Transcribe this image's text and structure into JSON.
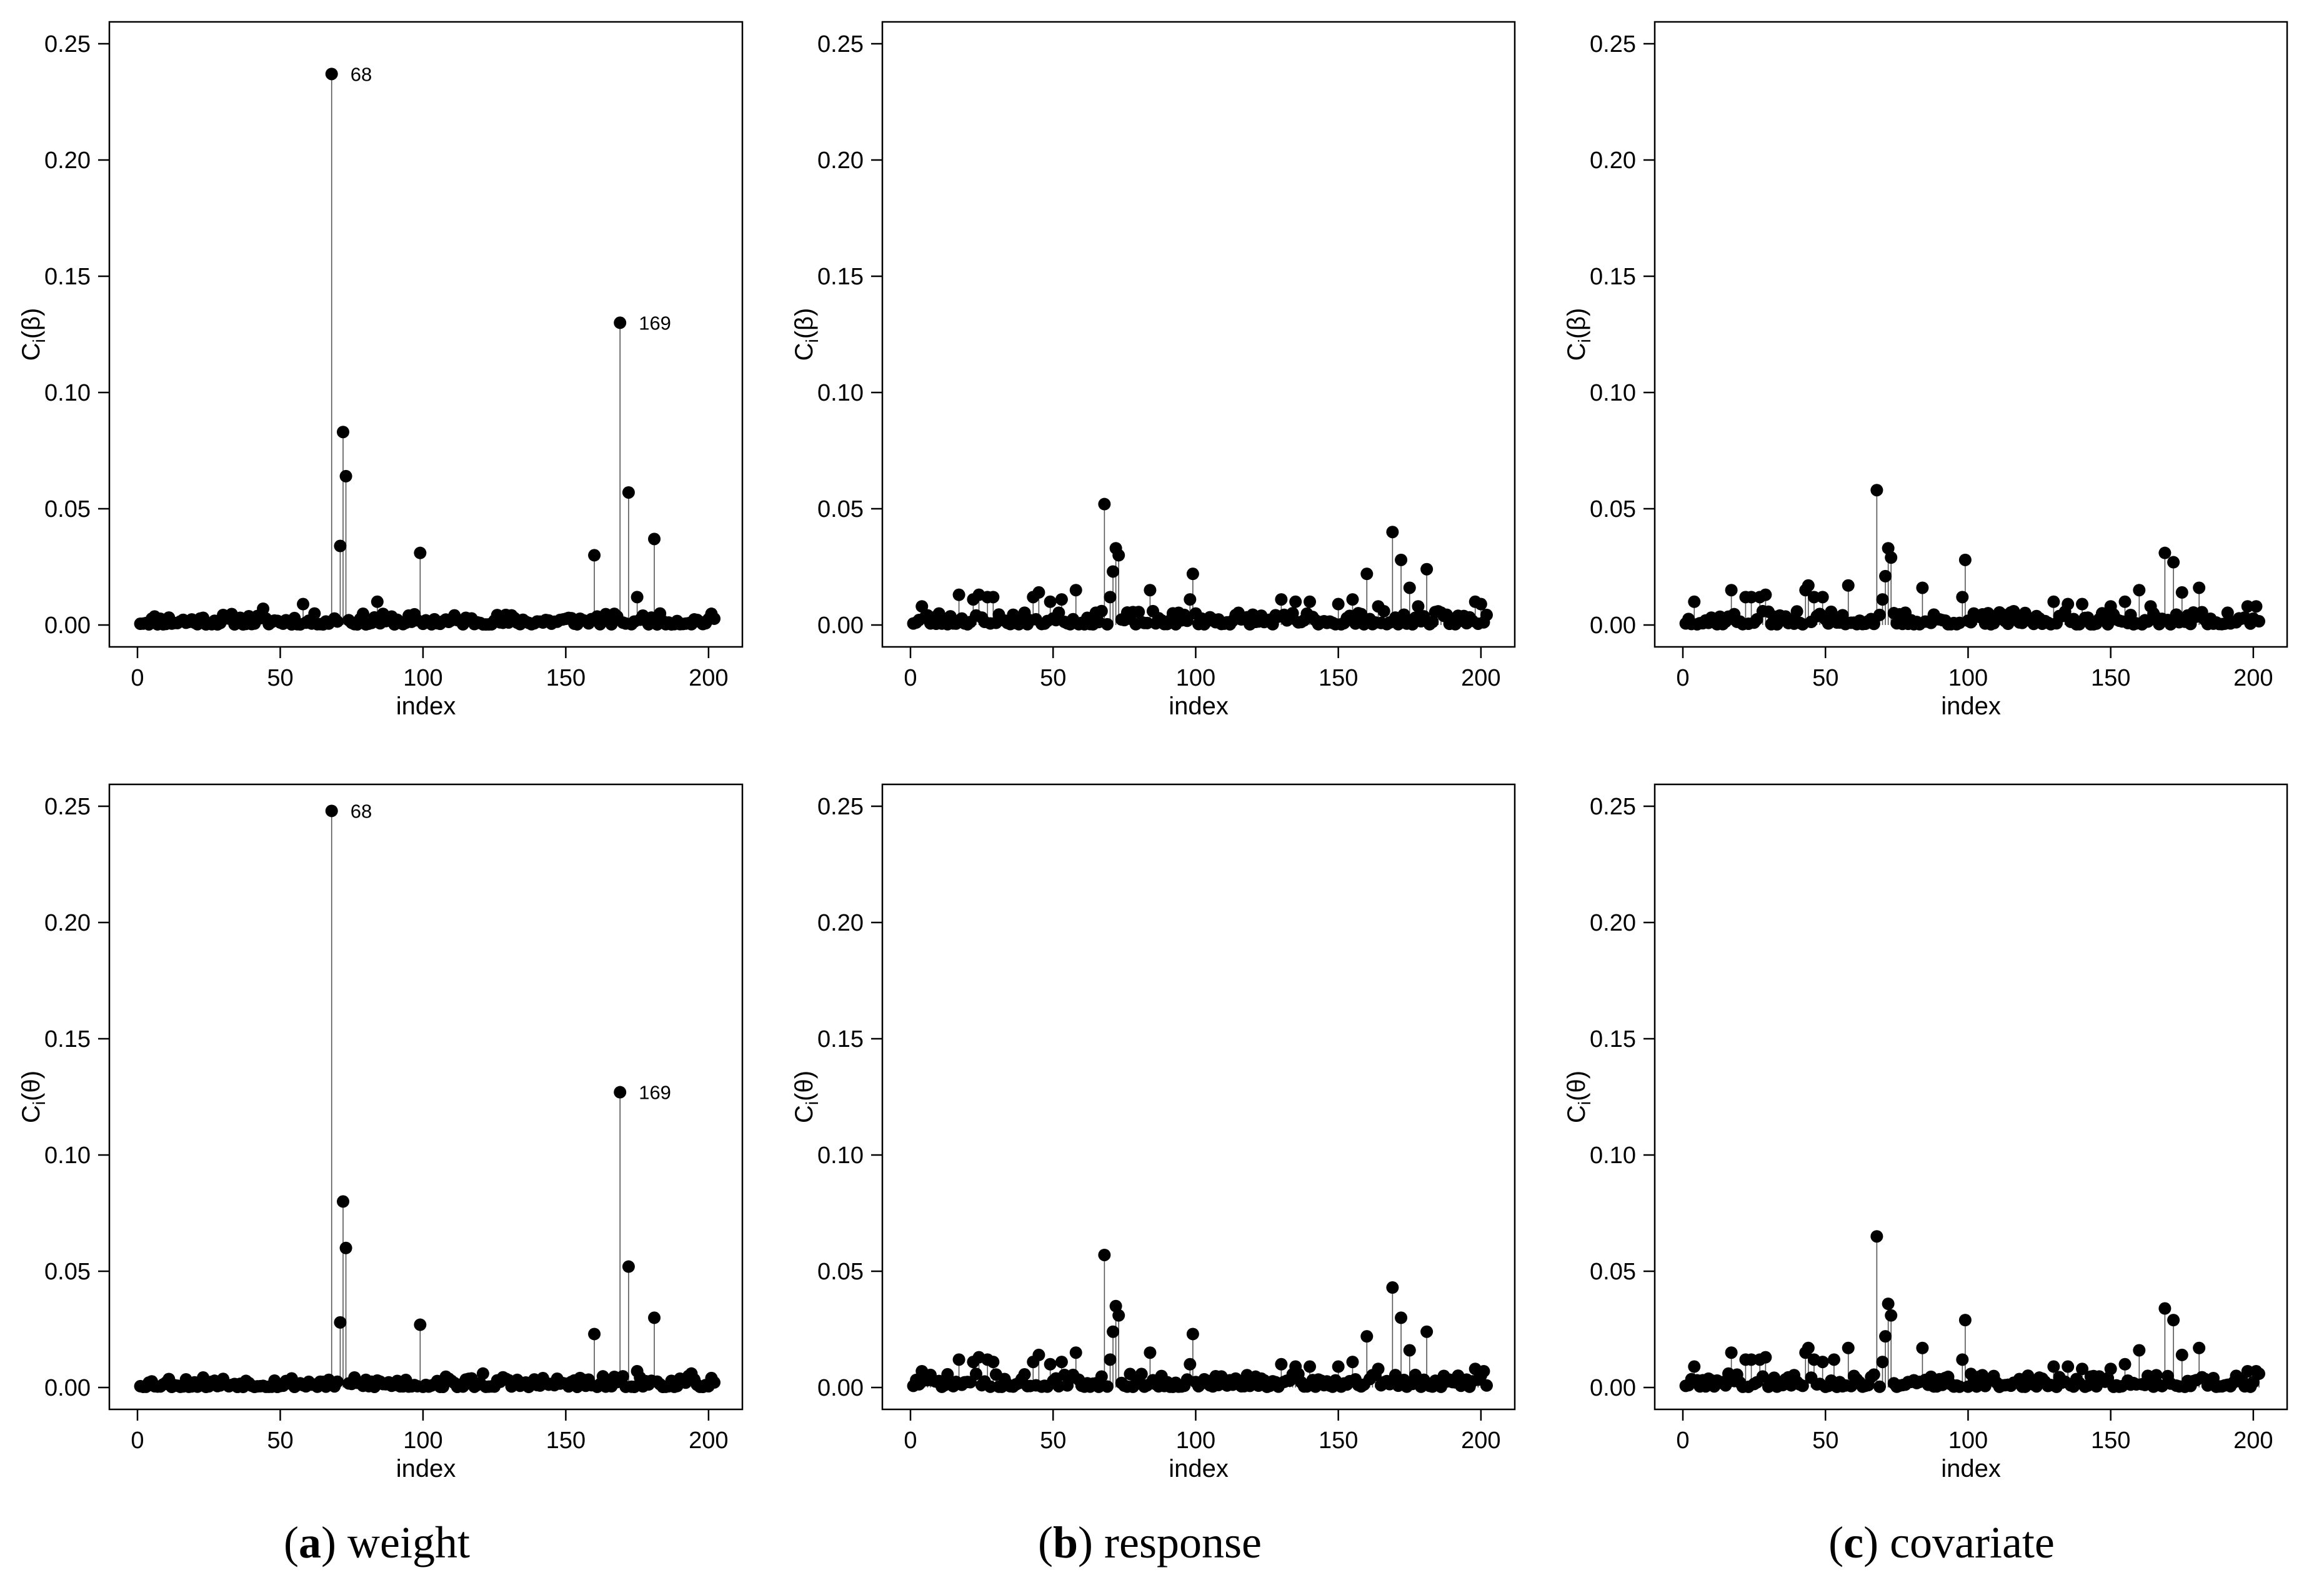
{
  "figure": {
    "captions": [
      {
        "open": "(",
        "letter": "a",
        "close": ")",
        "text": "weight"
      },
      {
        "open": "(",
        "letter": "b",
        "close": ")",
        "text": "response"
      },
      {
        "open": "(",
        "letter": "c",
        "close": ")",
        "text": "covariate"
      }
    ]
  },
  "chart_data": [
    {
      "type": "scatter",
      "style": "index-plot-with-spikes",
      "panel": "(a) weight, top",
      "xlabel": "index",
      "ylabel_base": "C",
      "ylabel_sub": "i",
      "ylabel_param": "(β)",
      "xlim": [
        0,
        202
      ],
      "ylim": [
        0,
        0.25
      ],
      "xticks": [
        0,
        50,
        100,
        150,
        200
      ],
      "yticks": [
        0.0,
        0.05,
        0.1,
        0.15,
        0.2,
        0.25
      ],
      "ytick_labels": [
        "0.00",
        "0.05",
        "0.10",
        "0.15",
        "0.20",
        "0.25"
      ],
      "baseline_max": 0.005,
      "seed": 11,
      "points": [
        {
          "x": 44,
          "y": 0.007
        },
        {
          "x": 58,
          "y": 0.009
        },
        {
          "x": 68,
          "y": 0.237
        },
        {
          "x": 71,
          "y": 0.034
        },
        {
          "x": 72,
          "y": 0.083
        },
        {
          "x": 73,
          "y": 0.064
        },
        {
          "x": 84,
          "y": 0.01
        },
        {
          "x": 99,
          "y": 0.031
        },
        {
          "x": 160,
          "y": 0.03
        },
        {
          "x": 169,
          "y": 0.13
        },
        {
          "x": 172,
          "y": 0.057
        },
        {
          "x": 175,
          "y": 0.012
        },
        {
          "x": 181,
          "y": 0.037
        }
      ],
      "labeled_points": [
        {
          "x": 68,
          "y": 0.237,
          "label": "68"
        },
        {
          "x": 169,
          "y": 0.13,
          "label": "169"
        }
      ]
    },
    {
      "type": "scatter",
      "style": "index-plot-with-spikes",
      "panel": "(b) response, top",
      "xlabel": "index",
      "ylabel_base": "C",
      "ylabel_sub": "i",
      "ylabel_param": "(β)",
      "xlim": [
        0,
        202
      ],
      "ylim": [
        0,
        0.25
      ],
      "xticks": [
        0,
        50,
        100,
        150,
        200
      ],
      "yticks": [
        0.0,
        0.05,
        0.1,
        0.15,
        0.2,
        0.25
      ],
      "ytick_labels": [
        "0.00",
        "0.05",
        "0.10",
        "0.15",
        "0.20",
        "0.25"
      ],
      "baseline_max": 0.006,
      "seed": 23,
      "points": [
        {
          "x": 4,
          "y": 0.008
        },
        {
          "x": 17,
          "y": 0.013
        },
        {
          "x": 22,
          "y": 0.011
        },
        {
          "x": 24,
          "y": 0.013
        },
        {
          "x": 27,
          "y": 0.012
        },
        {
          "x": 29,
          "y": 0.012
        },
        {
          "x": 43,
          "y": 0.012
        },
        {
          "x": 45,
          "y": 0.014
        },
        {
          "x": 49,
          "y": 0.01
        },
        {
          "x": 53,
          "y": 0.011
        },
        {
          "x": 58,
          "y": 0.015
        },
        {
          "x": 68,
          "y": 0.052
        },
        {
          "x": 70,
          "y": 0.012
        },
        {
          "x": 71,
          "y": 0.023
        },
        {
          "x": 72,
          "y": 0.033
        },
        {
          "x": 73,
          "y": 0.03
        },
        {
          "x": 84,
          "y": 0.015
        },
        {
          "x": 98,
          "y": 0.011
        },
        {
          "x": 99,
          "y": 0.022
        },
        {
          "x": 130,
          "y": 0.011
        },
        {
          "x": 135,
          "y": 0.01
        },
        {
          "x": 140,
          "y": 0.01
        },
        {
          "x": 150,
          "y": 0.009
        },
        {
          "x": 155,
          "y": 0.011
        },
        {
          "x": 160,
          "y": 0.022
        },
        {
          "x": 164,
          "y": 0.008
        },
        {
          "x": 169,
          "y": 0.04
        },
        {
          "x": 172,
          "y": 0.028
        },
        {
          "x": 175,
          "y": 0.016
        },
        {
          "x": 178,
          "y": 0.008
        },
        {
          "x": 181,
          "y": 0.024
        },
        {
          "x": 198,
          "y": 0.01
        },
        {
          "x": 200,
          "y": 0.009
        }
      ],
      "labeled_points": []
    },
    {
      "type": "scatter",
      "style": "index-plot-with-spikes",
      "panel": "(c) covariate, top",
      "xlabel": "index",
      "ylabel_base": "C",
      "ylabel_sub": "i",
      "ylabel_param": "(β)",
      "xlim": [
        0,
        202
      ],
      "ylim": [
        0,
        0.25
      ],
      "xticks": [
        0,
        50,
        100,
        150,
        200
      ],
      "yticks": [
        0.0,
        0.05,
        0.1,
        0.15,
        0.2,
        0.25
      ],
      "ytick_labels": [
        "0.00",
        "0.05",
        "0.10",
        "0.15",
        "0.20",
        "0.25"
      ],
      "baseline_max": 0.006,
      "seed": 37,
      "points": [
        {
          "x": 4,
          "y": 0.01
        },
        {
          "x": 17,
          "y": 0.015
        },
        {
          "x": 22,
          "y": 0.012
        },
        {
          "x": 24,
          "y": 0.012
        },
        {
          "x": 27,
          "y": 0.012
        },
        {
          "x": 29,
          "y": 0.013
        },
        {
          "x": 43,
          "y": 0.015
        },
        {
          "x": 44,
          "y": 0.017
        },
        {
          "x": 46,
          "y": 0.012
        },
        {
          "x": 49,
          "y": 0.012
        },
        {
          "x": 58,
          "y": 0.017
        },
        {
          "x": 68,
          "y": 0.058
        },
        {
          "x": 70,
          "y": 0.011
        },
        {
          "x": 71,
          "y": 0.021
        },
        {
          "x": 72,
          "y": 0.033
        },
        {
          "x": 73,
          "y": 0.029
        },
        {
          "x": 84,
          "y": 0.016
        },
        {
          "x": 98,
          "y": 0.012
        },
        {
          "x": 99,
          "y": 0.028
        },
        {
          "x": 130,
          "y": 0.01
        },
        {
          "x": 135,
          "y": 0.009
        },
        {
          "x": 140,
          "y": 0.009
        },
        {
          "x": 150,
          "y": 0.008
        },
        {
          "x": 155,
          "y": 0.01
        },
        {
          "x": 160,
          "y": 0.015
        },
        {
          "x": 164,
          "y": 0.008
        },
        {
          "x": 169,
          "y": 0.031
        },
        {
          "x": 172,
          "y": 0.027
        },
        {
          "x": 175,
          "y": 0.014
        },
        {
          "x": 181,
          "y": 0.016
        },
        {
          "x": 198,
          "y": 0.008
        },
        {
          "x": 201,
          "y": 0.008
        }
      ],
      "labeled_points": []
    },
    {
      "type": "scatter",
      "style": "index-plot-with-spikes",
      "panel": "(a) weight, bottom",
      "xlabel": "index",
      "ylabel_base": "C",
      "ylabel_sub": "i",
      "ylabel_param": "(θ)",
      "xlim": [
        0,
        202
      ],
      "ylim": [
        0,
        0.25
      ],
      "xticks": [
        0,
        50,
        100,
        150,
        200
      ],
      "yticks": [
        0.0,
        0.05,
        0.1,
        0.15,
        0.2,
        0.25
      ],
      "ytick_labels": [
        "0.00",
        "0.05",
        "0.10",
        "0.15",
        "0.20",
        "0.25"
      ],
      "baseline_max": 0.005,
      "seed": 53,
      "points": [
        {
          "x": 68,
          "y": 0.248
        },
        {
          "x": 71,
          "y": 0.028
        },
        {
          "x": 72,
          "y": 0.08
        },
        {
          "x": 73,
          "y": 0.06
        },
        {
          "x": 99,
          "y": 0.027
        },
        {
          "x": 121,
          "y": 0.006
        },
        {
          "x": 160,
          "y": 0.023
        },
        {
          "x": 169,
          "y": 0.127
        },
        {
          "x": 172,
          "y": 0.052
        },
        {
          "x": 175,
          "y": 0.007
        },
        {
          "x": 181,
          "y": 0.03
        },
        {
          "x": 194,
          "y": 0.006
        }
      ],
      "labeled_points": [
        {
          "x": 68,
          "y": 0.248,
          "label": "68"
        },
        {
          "x": 169,
          "y": 0.127,
          "label": "169"
        }
      ]
    },
    {
      "type": "scatter",
      "style": "index-plot-with-spikes",
      "panel": "(b) response, bottom",
      "xlabel": "index",
      "ylabel_base": "C",
      "ylabel_sub": "i",
      "ylabel_param": "(θ)",
      "xlim": [
        0,
        202
      ],
      "ylim": [
        0,
        0.25
      ],
      "xticks": [
        0,
        50,
        100,
        150,
        200
      ],
      "yticks": [
        0.0,
        0.05,
        0.1,
        0.15,
        0.2,
        0.25
      ],
      "ytick_labels": [
        "0.00",
        "0.05",
        "0.10",
        "0.15",
        "0.20",
        "0.25"
      ],
      "baseline_max": 0.006,
      "seed": 71,
      "points": [
        {
          "x": 4,
          "y": 0.007
        },
        {
          "x": 17,
          "y": 0.012
        },
        {
          "x": 22,
          "y": 0.011
        },
        {
          "x": 24,
          "y": 0.013
        },
        {
          "x": 27,
          "y": 0.012
        },
        {
          "x": 29,
          "y": 0.011
        },
        {
          "x": 43,
          "y": 0.011
        },
        {
          "x": 45,
          "y": 0.014
        },
        {
          "x": 49,
          "y": 0.01
        },
        {
          "x": 53,
          "y": 0.011
        },
        {
          "x": 58,
          "y": 0.015
        },
        {
          "x": 68,
          "y": 0.057
        },
        {
          "x": 70,
          "y": 0.012
        },
        {
          "x": 71,
          "y": 0.024
        },
        {
          "x": 72,
          "y": 0.035
        },
        {
          "x": 73,
          "y": 0.031
        },
        {
          "x": 84,
          "y": 0.015
        },
        {
          "x": 98,
          "y": 0.01
        },
        {
          "x": 99,
          "y": 0.023
        },
        {
          "x": 130,
          "y": 0.01
        },
        {
          "x": 135,
          "y": 0.009
        },
        {
          "x": 140,
          "y": 0.009
        },
        {
          "x": 150,
          "y": 0.009
        },
        {
          "x": 155,
          "y": 0.011
        },
        {
          "x": 160,
          "y": 0.022
        },
        {
          "x": 164,
          "y": 0.008
        },
        {
          "x": 169,
          "y": 0.043
        },
        {
          "x": 172,
          "y": 0.03
        },
        {
          "x": 175,
          "y": 0.016
        },
        {
          "x": 181,
          "y": 0.024
        },
        {
          "x": 198,
          "y": 0.008
        },
        {
          "x": 201,
          "y": 0.007
        }
      ],
      "labeled_points": []
    },
    {
      "type": "scatter",
      "style": "index-plot-with-spikes",
      "panel": "(c) covariate, bottom",
      "xlabel": "index",
      "ylabel_base": "C",
      "ylabel_sub": "i",
      "ylabel_param": "(θ)",
      "xlim": [
        0,
        202
      ],
      "ylim": [
        0,
        0.25
      ],
      "xticks": [
        0,
        50,
        100,
        150,
        200
      ],
      "yticks": [
        0.0,
        0.05,
        0.1,
        0.15,
        0.2,
        0.25
      ],
      "ytick_labels": [
        "0.00",
        "0.05",
        "0.10",
        "0.15",
        "0.20",
        "0.25"
      ],
      "baseline_max": 0.006,
      "seed": 89,
      "points": [
        {
          "x": 4,
          "y": 0.009
        },
        {
          "x": 17,
          "y": 0.015
        },
        {
          "x": 22,
          "y": 0.012
        },
        {
          "x": 24,
          "y": 0.012
        },
        {
          "x": 27,
          "y": 0.012
        },
        {
          "x": 29,
          "y": 0.013
        },
        {
          "x": 43,
          "y": 0.015
        },
        {
          "x": 44,
          "y": 0.017
        },
        {
          "x": 46,
          "y": 0.012
        },
        {
          "x": 49,
          "y": 0.011
        },
        {
          "x": 53,
          "y": 0.012
        },
        {
          "x": 58,
          "y": 0.017
        },
        {
          "x": 68,
          "y": 0.065
        },
        {
          "x": 70,
          "y": 0.011
        },
        {
          "x": 71,
          "y": 0.022
        },
        {
          "x": 72,
          "y": 0.036
        },
        {
          "x": 73,
          "y": 0.031
        },
        {
          "x": 84,
          "y": 0.017
        },
        {
          "x": 98,
          "y": 0.012
        },
        {
          "x": 99,
          "y": 0.029
        },
        {
          "x": 130,
          "y": 0.009
        },
        {
          "x": 135,
          "y": 0.009
        },
        {
          "x": 140,
          "y": 0.008
        },
        {
          "x": 150,
          "y": 0.008
        },
        {
          "x": 155,
          "y": 0.01
        },
        {
          "x": 160,
          "y": 0.016
        },
        {
          "x": 169,
          "y": 0.034
        },
        {
          "x": 172,
          "y": 0.029
        },
        {
          "x": 175,
          "y": 0.014
        },
        {
          "x": 181,
          "y": 0.017
        },
        {
          "x": 198,
          "y": 0.007
        },
        {
          "x": 201,
          "y": 0.007
        }
      ],
      "labeled_points": []
    }
  ]
}
